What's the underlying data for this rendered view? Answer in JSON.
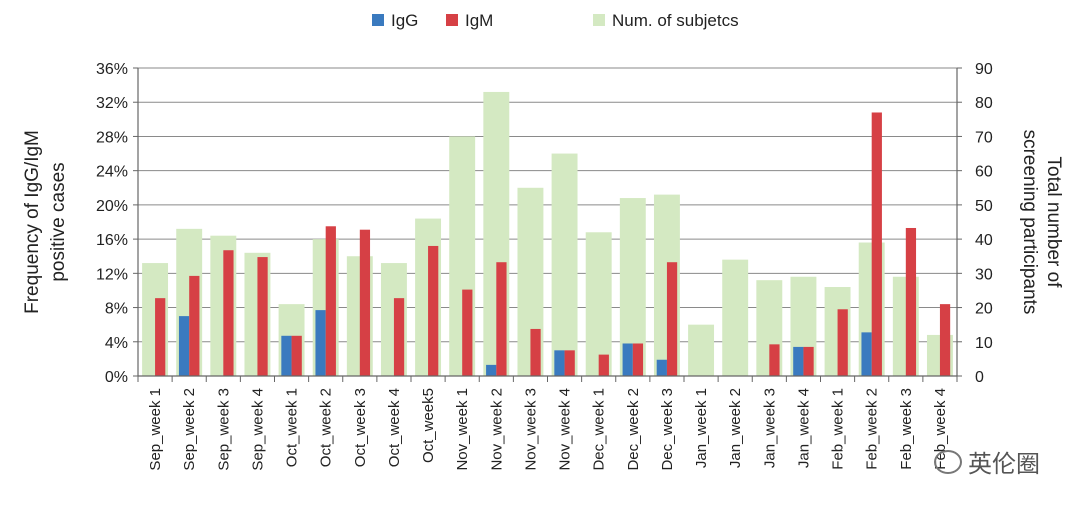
{
  "chart_data": {
    "type": "bar",
    "categories": [
      "Sep_week 1",
      "Sep_week 2",
      "Sep_week 3",
      "Sep_week 4",
      "Oct_week 1",
      "Oct_week 2",
      "Oct_week 3",
      "Oct_week 4",
      "Oct_week5",
      "Nov_week 1",
      "Nov_week 2",
      "Nov_week 3",
      "Nov_week 4",
      "Dec_week 1",
      "Dec_week 2",
      "Dec_week 3",
      "Jan_week 1",
      "Jan_week 2",
      "Jan_week 3",
      "Jan_week 4",
      "Feb_week 1",
      "Feb_week 2",
      "Feb_week 3",
      "Feb_week 4"
    ],
    "series": [
      {
        "name": "IgG",
        "axis": "left",
        "unit": "%",
        "color": "#3a7abf",
        "values": [
          0,
          7.0,
          0,
          0,
          4.7,
          7.7,
          0,
          0,
          0,
          0,
          1.3,
          0,
          3.0,
          0,
          3.8,
          1.9,
          0,
          0,
          0,
          3.4,
          0,
          5.1,
          0,
          0
        ]
      },
      {
        "name": "IgM",
        "axis": "left",
        "unit": "%",
        "color": "#d64045",
        "values": [
          9.1,
          11.7,
          14.7,
          13.9,
          4.7,
          17.5,
          17.1,
          9.1,
          15.2,
          10.1,
          13.3,
          5.5,
          3.0,
          2.5,
          3.8,
          13.3,
          0,
          0,
          3.7,
          3.4,
          7.8,
          30.8,
          17.3,
          8.4
        ]
      },
      {
        "name": "Num. of subjetcs",
        "axis": "right",
        "color": "#d4e9c2",
        "values": [
          33,
          43,
          41,
          36,
          21,
          40,
          35,
          33,
          46,
          70,
          83,
          55,
          65,
          42,
          52,
          53,
          15,
          34,
          28,
          29,
          26,
          39,
          29,
          12
        ]
      }
    ],
    "ylabel": "Frequency of IgG/IgM positive cases",
    "ylabel_lines": [
      "Frequency of IgG/IgM",
      "positive cases"
    ],
    "y2label": "Total number of screening participants",
    "y2label_lines": [
      "Total number of",
      "screening participants"
    ],
    "ylim": [
      0,
      36
    ],
    "yticks": [
      "0%",
      "4%",
      "8%",
      "12%",
      "16%",
      "20%",
      "24%",
      "28%",
      "32%",
      "36%"
    ],
    "y2lim": [
      0,
      90
    ],
    "y2ticks": [
      "0",
      "10",
      "20",
      "30",
      "40",
      "50",
      "60",
      "70",
      "80",
      "90"
    ],
    "grid": true,
    "legend": "top-center"
  },
  "watermark": {
    "text": "英伦圈",
    "icon": "chat-bubble-logo"
  }
}
